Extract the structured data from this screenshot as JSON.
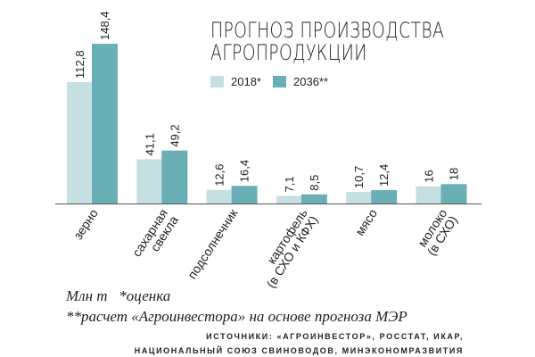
{
  "chart_data": {
    "type": "bar",
    "title": "ПРОГНОЗ ПРОИЗВОДСТВА АГРОПРОДУКЦИИ",
    "categories": [
      "зерно",
      "сахарная свекла",
      "подсолнечник",
      "картофель (в СХО и КФХ)",
      "мясо",
      "молоко (в СХО)"
    ],
    "series": [
      {
        "name": "2018*",
        "color": "#c6e0e1",
        "values": [
          112.8,
          41.1,
          12.6,
          7.1,
          10.7,
          16
        ],
        "labels": [
          "112,8",
          "41,1",
          "12,6",
          "7,1",
          "10,7",
          "16"
        ]
      },
      {
        "name": "2036**",
        "color": "#6aaeb6",
        "values": [
          148.4,
          49.2,
          16.4,
          8.5,
          12.4,
          18
        ],
        "labels": [
          "148,4",
          "49,2",
          "16,4",
          "8,5",
          "12,4",
          "18"
        ]
      }
    ],
    "unit": "Млн т",
    "legend": "top",
    "grid": false
  },
  "notes": {
    "unit": "Млн т",
    "note1": "*оценка",
    "note2": "**расчет «Агроинвестора» на основе прогноза МЭР"
  },
  "sources": {
    "line1": "ИСТОЧНИКИ: «АГРОИНВЕСТОР», РОССТАТ, ИКАР,",
    "line2": "НАЦИОНАЛЬНЫЙ СОЮЗ СВИНОВОДОВ, МИНЭКОНОМРАЗВИТИЯ"
  }
}
